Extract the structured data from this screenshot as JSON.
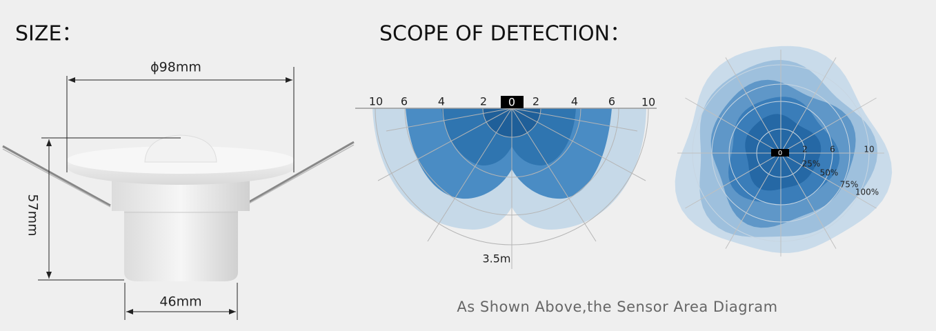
{
  "size_title": "SIZE：",
  "scope_title": "SCOPE OF DETECTION：",
  "dimensions": {
    "diameter": "ϕ98mm",
    "height": "57mm",
    "base": "46mm"
  },
  "side_view": {
    "scale": [
      10,
      6,
      4,
      2,
      0,
      2,
      4,
      6,
      10
    ],
    "range": "3.5m"
  },
  "top_view": {
    "center": "0",
    "rings": [
      2,
      6,
      10
    ],
    "levels": [
      "25%",
      "50%",
      "75%",
      "100%"
    ]
  },
  "caption": "As Shown Above,the Sensor Area Diagram"
}
